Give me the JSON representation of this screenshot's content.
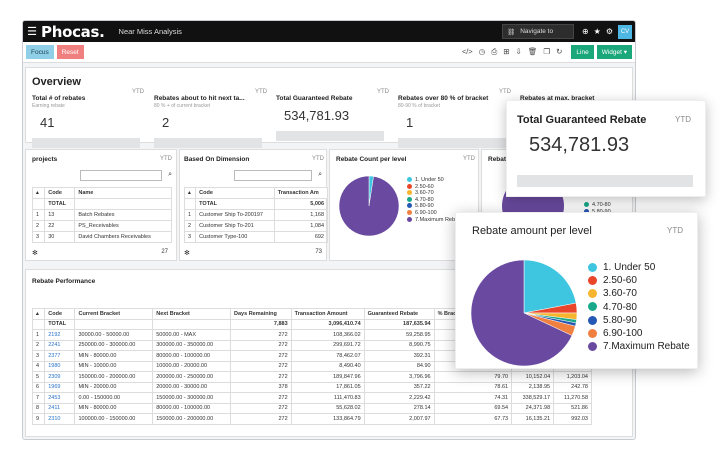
{
  "app": {
    "logo": "Phocas.",
    "title": "Near Miss Analysis",
    "navigate": "Navigate to",
    "user": "CV"
  },
  "toolbar": {
    "focus": "Focus",
    "reset": "Reset",
    "line": "Line",
    "widget": "Widget ▾"
  },
  "overview": {
    "title": "Overview",
    "metrics": [
      {
        "title": "Total # of rebates",
        "sub": "Earning rebate",
        "value": "41",
        "ytd": "YTD"
      },
      {
        "title": "Rebates about to hit next ta...",
        "sub": "80 % + of current bracket",
        "value": "2",
        "ytd": "YTD"
      },
      {
        "title": "Total Guaranteed Rebate",
        "sub": "",
        "value": "534,781.93",
        "ytd": "YTD"
      },
      {
        "title": "Rebates over 80 % of bracket",
        "sub": "80-90 % of bracket",
        "value": "1",
        "ytd": "YTD"
      },
      {
        "title": "Rebates at max. bracket",
        "sub": "",
        "value": "",
        "ytd": ""
      }
    ]
  },
  "projects": {
    "title": "projects",
    "ytd": "YTD",
    "headers": [
      "Code",
      "Name"
    ],
    "total_label": "TOTAL",
    "rows": [
      {
        "n": "1",
        "code": "13",
        "name": "Batch Rebates"
      },
      {
        "n": "2",
        "code": "22",
        "name": "PS_Receivables"
      },
      {
        "n": "3",
        "code": "30",
        "name": "David Chambers Receivables"
      }
    ],
    "footer": "27"
  },
  "dimension": {
    "title": "Based On Dimension",
    "ytd": "YTD",
    "headers": [
      "Code",
      "Transaction Am"
    ],
    "total_label": "TOTAL",
    "total_value": "5,006",
    "rows": [
      {
        "n": "1",
        "code": "Customer Ship To-200197",
        "amt": "1,168"
      },
      {
        "n": "2",
        "code": "Customer Ship To-201",
        "amt": "1,084"
      },
      {
        "n": "3",
        "code": "Customer Type-100",
        "amt": "692"
      }
    ],
    "footer": "73"
  },
  "rebate_count": {
    "title": "Rebate Count per level",
    "ytd": "YTD",
    "legend": [
      "1. Under 50",
      "2.50-60",
      "3.60-70",
      "4.70-80",
      "5.80-90",
      "6.90-100",
      "7.Maximum Rebate"
    ]
  },
  "partial": {
    "title": "Rebate",
    "legend": [
      "4.70-80",
      "5.80-90"
    ]
  },
  "rebate_performance": {
    "title": "Rebate Performance",
    "headers": [
      "Code",
      "Current Bracket",
      "Next Bracket",
      "Days Remaining",
      "Transaction Amount",
      "Guaranteed Rebate",
      "% Bracket Achieved ▾",
      "D"
    ],
    "total": {
      "label": "TOTAL",
      "days": "7,883",
      "amount": "3,096,410.74",
      "rebate": "187,635.94",
      "pct": "-31,806.49"
    },
    "rows": [
      {
        "n": "1",
        "code": "2192",
        "cur": "30000.00 - 50000.00",
        "next": "50000.00 - MAX",
        "days": "272",
        "amt": "108,366.02",
        "reb": "59,258.95",
        "pct": "155.13",
        "c1": "",
        "c2": ""
      },
      {
        "n": "2",
        "code": "2241",
        "cur": "250000.00 - 300000.00",
        "next": "300000.00 - 350000.00",
        "days": "272",
        "amt": "299,691.72",
        "reb": "8,990.75",
        "pct": "99.90",
        "c1": "",
        "c2": ""
      },
      {
        "n": "3",
        "code": "2377",
        "cur": "MIN - 80000.00",
        "next": "80000.00 - 100000.00",
        "days": "272",
        "amt": "78,462.07",
        "reb": "392.31",
        "pct": "98.08",
        "c1": "",
        "c2": ""
      },
      {
        "n": "4",
        "code": "1980",
        "cur": "MIN - 10000.00",
        "next": "10000.00 - 20000.00",
        "days": "272",
        "amt": "8,490.40",
        "reb": "84.90",
        "pct": "84.90",
        "c1": "",
        "c2": ""
      },
      {
        "n": "5",
        "code": "2309",
        "cur": "150000.00 - 200000.00",
        "next": "200000.00 - 250000.00",
        "days": "272",
        "amt": "189,847.96",
        "reb": "3,796.96",
        "pct": "79.70",
        "c1": "10,152.04",
        "c2": "1,203.04"
      },
      {
        "n": "6",
        "code": "1969",
        "cur": "MIN - 20000.00",
        "next": "20000.00 - 30000.00",
        "days": "378",
        "amt": "17,861.05",
        "reb": "357.22",
        "pct": "78.61",
        "c1": "2,138.95",
        "c2": "242.78"
      },
      {
        "n": "7",
        "code": "2453",
        "cur": "0.00 - 150000.00",
        "next": "150000.00 - 300000.00",
        "days": "272",
        "amt": "111,470.83",
        "reb": "2,229.42",
        "pct": "74.31",
        "c1": "338,529.17",
        "c2": "11,270.58"
      },
      {
        "n": "8",
        "code": "2411",
        "cur": "MIN - 80000.00",
        "next": "80000.00 - 100000.00",
        "days": "272",
        "amt": "55,628.02",
        "reb": "278.14",
        "pct": "69.54",
        "c1": "24,371.98",
        "c2": "521.86"
      },
      {
        "n": "9",
        "code": "2310",
        "cur": "100000.00 - 150000.00",
        "next": "150000.00 - 200000.00",
        "days": "272",
        "amt": "133,864.79",
        "reb": "2,007.97",
        "pct": "67.73",
        "c1": "16,135.21",
        "c2": "992.03"
      }
    ]
  },
  "float_rebate": {
    "title": "Total Guaranteed Rebate",
    "ytd": "YTD",
    "value": "534,781.93"
  },
  "float_pie": {
    "title": "Rebate amount per level",
    "ytd": "YTD",
    "legend": [
      "1. Under 50",
      "2.50-60",
      "3.60-70",
      "4.70-80",
      "5.80-90",
      "6.90-100",
      "7.Maximum Rebate"
    ]
  },
  "colors": {
    "c1": "#3ec6e0",
    "c2": "#e8452a",
    "c3": "#f5b52e",
    "c4": "#18a88a",
    "c5": "#2558b5",
    "c6": "#f08040",
    "c7": "#6a4aa0"
  },
  "chart_data": [
    {
      "type": "pie",
      "title": "Rebate Count per level",
      "categories": [
        "1. Under 50",
        "2.50-60",
        "3.60-70",
        "4.70-80",
        "5.80-90",
        "6.90-100",
        "7.Maximum Rebate"
      ],
      "values": [
        1,
        0,
        0,
        0,
        0,
        0,
        40
      ]
    },
    {
      "type": "pie",
      "title": "Rebate amount per level",
      "categories": [
        "1. Under 50",
        "2.50-60",
        "3.60-70",
        "4.70-80",
        "5.80-90",
        "6.90-100",
        "7.Maximum Rebate"
      ],
      "values": [
        22,
        3,
        2,
        1,
        1,
        3,
        68
      ]
    }
  ]
}
